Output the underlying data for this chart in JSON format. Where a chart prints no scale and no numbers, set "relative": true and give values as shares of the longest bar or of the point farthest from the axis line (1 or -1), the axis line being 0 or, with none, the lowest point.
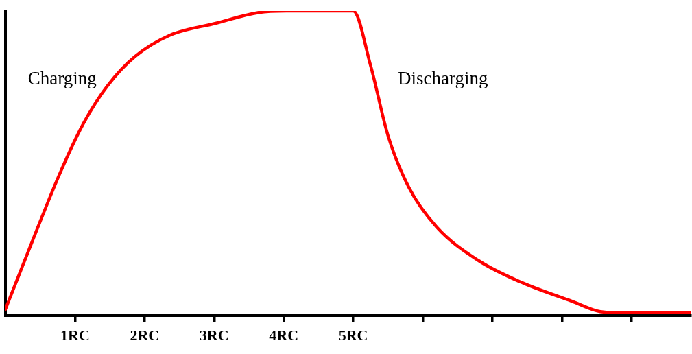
{
  "chart_data": {
    "type": "line",
    "relative": true,
    "tick_labels": "x",
    "grid": false,
    "legend": false,
    "marker": "none",
    "line_style": "solid",
    "xlim": [
      0,
      9.85
    ],
    "xticks": [
      {
        "value": 1,
        "label": "1RC"
      },
      {
        "value": 2,
        "label": "2RC"
      },
      {
        "value": 3,
        "label": "3RC"
      },
      {
        "value": 4,
        "label": "4RC"
      },
      {
        "value": 5,
        "label": "5RC"
      },
      {
        "value": 6,
        "label": null
      },
      {
        "value": 7,
        "label": null
      },
      {
        "value": 8,
        "label": null
      },
      {
        "value": 9,
        "label": null
      }
    ],
    "series": [
      {
        "color": "#ff0000",
        "x": [
          0,
          0.38,
          0.77,
          1.12,
          1.47,
          1.86,
          2.36,
          3.03,
          3.64,
          4.04,
          5,
          5.25,
          5.5,
          5.8,
          6.2,
          6.8,
          7.4,
          8.1,
          8.64,
          9.85
        ],
        "values": [
          0.02,
          0.24,
          0.46,
          0.63,
          0.755,
          0.85,
          0.92,
          0.96,
          0.995,
          1,
          1,
          0.82,
          0.59,
          0.42,
          0.29,
          0.18,
          0.11,
          0.05,
          0.01,
          0.01
        ]
      }
    ],
    "annotations": [
      "Charging",
      "Discharging"
    ]
  }
}
